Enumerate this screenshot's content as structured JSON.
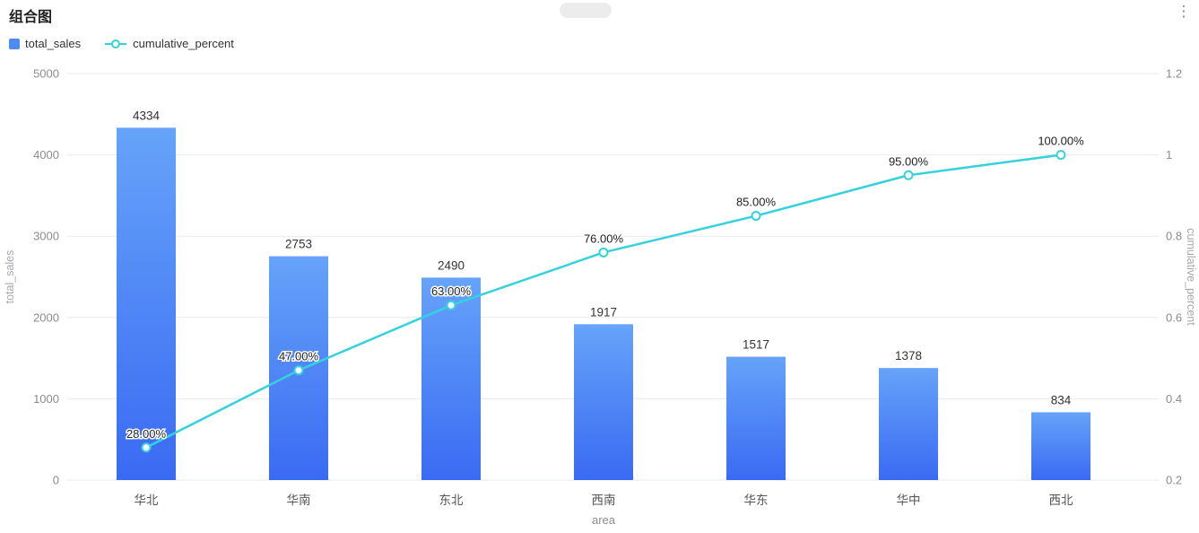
{
  "header": {
    "title": "组合图",
    "more_icon": "⋮"
  },
  "legend": {
    "items": [
      {
        "label": "total_sales",
        "marker": "square",
        "color": "#4C8BF8"
      },
      {
        "label": "cumulative_percent",
        "marker": "line-circle",
        "color": "#35D2DD"
      }
    ]
  },
  "chart_data": {
    "type": "combo-pareto",
    "categories": [
      "华北",
      "华南",
      "东北",
      "西南",
      "华东",
      "华中",
      "西北"
    ],
    "series": [
      {
        "name": "total_sales",
        "type": "bar",
        "axis": "left",
        "color_top": "#66A3F9",
        "color_bottom": "#3A6AF3",
        "values": [
          4334,
          2753,
          2490,
          1917,
          1517,
          1378,
          834
        ],
        "labels": [
          "4334",
          "2753",
          "2490",
          "1917",
          "1517",
          "1378",
          "834"
        ]
      },
      {
        "name": "cumulative_percent",
        "type": "line",
        "axis": "right",
        "color": "#35D2DD",
        "values": [
          0.28,
          0.47,
          0.63,
          0.76,
          0.85,
          0.95,
          1.0
        ],
        "labels": [
          "28.00%",
          "47.00%",
          "63.00%",
          "76.00%",
          "85.00%",
          "95.00%",
          "100.00%"
        ]
      }
    ],
    "xlabel": "area",
    "y_left": {
      "name": "total_sales",
      "min": 0,
      "max": 5000,
      "ticks": [
        0,
        1000,
        2000,
        3000,
        4000,
        5000
      ]
    },
    "y_right": {
      "name": "cumulative_percent",
      "min": 0.2,
      "max": 1.2,
      "ticks": [
        0.2,
        0.4,
        0.6,
        0.8,
        1,
        1.2
      ]
    },
    "grid": true,
    "legend_position": "top-left",
    "colors": {
      "gridline": "#E6EBF2",
      "axis_tick_text": "#8C8C8C",
      "axis_name_text": "#A5A8AD",
      "value_label": "#333333",
      "category_label": "#555555"
    }
  }
}
